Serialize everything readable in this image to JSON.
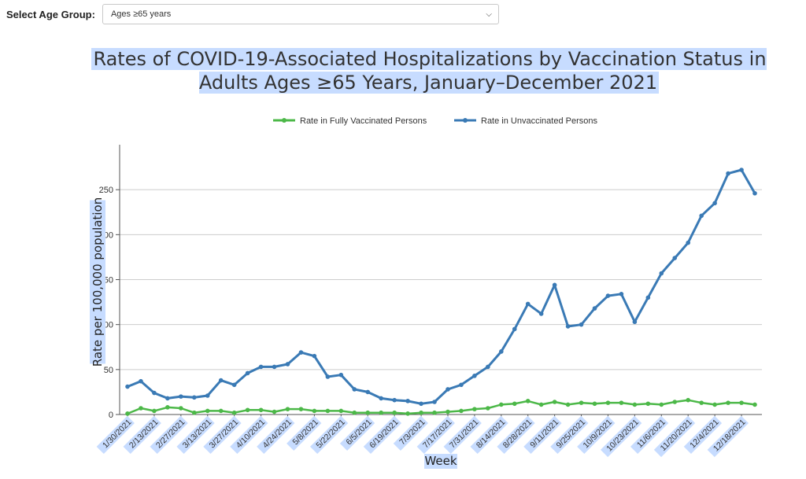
{
  "selector": {
    "label": "Select Age Group:",
    "value": "Ages ≥65 years"
  },
  "colors": {
    "vaccinated": "#4cb848",
    "unvaccinated": "#3a7ab5",
    "highlight": "#c7dcff",
    "grid": "#cccccc"
  },
  "chart_data": {
    "type": "line",
    "title": "Rates of COVID-19-Associated Hospitalizations by Vaccination Status in Adults Ages ≥65 Years, January–December 2021",
    "xlabel": "Week",
    "ylabel": "Rate per 100,000 population",
    "ylim": [
      0,
      300
    ],
    "yticks": [
      0,
      50,
      100,
      150,
      200,
      250
    ],
    "grid": true,
    "legend_position": "top",
    "x_tick_labels": [
      "1/30/2021",
      "2/13/2021",
      "2/27/2021",
      "3/13/2021",
      "3/27/2021",
      "4/10/2021",
      "4/24/2021",
      "5/8/2021",
      "5/22/2021",
      "6/5/2021",
      "6/19/2021",
      "7/3/2021",
      "7/17/2021",
      "7/31/2021",
      "8/14/2021",
      "8/28/2021",
      "9/11/2021",
      "9/25/2021",
      "10/9/2021",
      "10/23/2021",
      "11/6/2021",
      "11/20/2021",
      "12/4/2021",
      "12/18/2021"
    ],
    "x": [
      "1/30/2021",
      "2/6/2021",
      "2/13/2021",
      "2/20/2021",
      "2/27/2021",
      "3/6/2021",
      "3/13/2021",
      "3/20/2021",
      "3/27/2021",
      "4/3/2021",
      "4/10/2021",
      "4/17/2021",
      "4/24/2021",
      "5/1/2021",
      "5/8/2021",
      "5/15/2021",
      "5/22/2021",
      "5/29/2021",
      "6/5/2021",
      "6/12/2021",
      "6/19/2021",
      "6/26/2021",
      "7/3/2021",
      "7/10/2021",
      "7/17/2021",
      "7/24/2021",
      "7/31/2021",
      "8/7/2021",
      "8/14/2021",
      "8/21/2021",
      "8/28/2021",
      "9/4/2021",
      "9/11/2021",
      "9/18/2021",
      "9/25/2021",
      "10/2/2021",
      "10/9/2021",
      "10/16/2021",
      "10/23/2021",
      "10/30/2021",
      "11/6/2021",
      "11/13/2021",
      "11/20/2021",
      "11/27/2021",
      "12/4/2021",
      "12/11/2021",
      "12/18/2021",
      "12/25/2021"
    ],
    "series": [
      {
        "name": "Rate in Fully Vaccinated Persons",
        "values": [
          1,
          7,
          4,
          8,
          7,
          2,
          4,
          4,
          2,
          5,
          5,
          3,
          6,
          6,
          4,
          4,
          4,
          2,
          2,
          2,
          2,
          1,
          2,
          2,
          3,
          4,
          6,
          7,
          11,
          12,
          15,
          11,
          14,
          11,
          13,
          12,
          13,
          13,
          11,
          12,
          11,
          14,
          16,
          13,
          11,
          13,
          13,
          11
        ]
      },
      {
        "name": "Rate in Unvaccinated Persons",
        "values": [
          31,
          37,
          24,
          18,
          20,
          19,
          21,
          38,
          33,
          46,
          53,
          53,
          56,
          69,
          65,
          42,
          44,
          28,
          25,
          18,
          16,
          15,
          12,
          14,
          28,
          33,
          43,
          53,
          70,
          95,
          123,
          112,
          144,
          98,
          100,
          118,
          132,
          134,
          103,
          130,
          157,
          174,
          191,
          221,
          235,
          268,
          272,
          246
        ]
      }
    ]
  }
}
